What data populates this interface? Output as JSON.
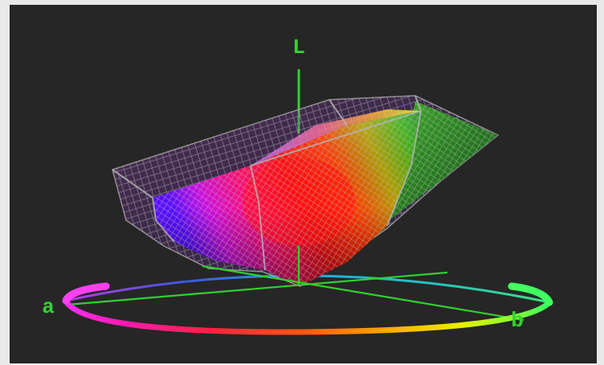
{
  "axes": {
    "vertical_label": "L",
    "left_label": "a",
    "right_label": "b"
  },
  "colors": {
    "background": "#262626",
    "axis": "#2fd12f",
    "mesh": "#9a9a9a"
  }
}
